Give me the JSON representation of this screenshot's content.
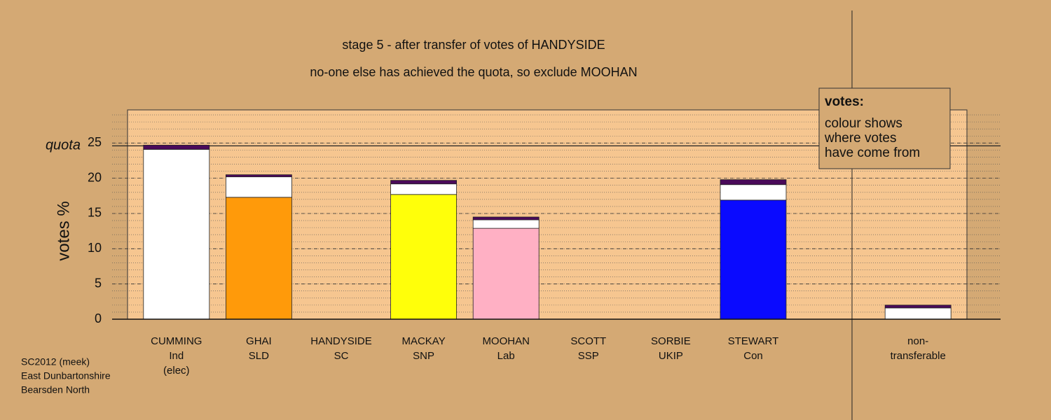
{
  "chart_data": {
    "type": "stacked-bar",
    "title": "stage 5 - after transfer of votes of HANDYSIDE",
    "subtitle": "no-one else has achieved the quota, so exclude MOOHAN",
    "y_label": "votes %",
    "categories": [
      [
        "CUMMING",
        "Ind",
        "(elec)"
      ],
      [
        "GHAI",
        "SLD"
      ],
      [
        "HANDYSIDE",
        "SC"
      ],
      [
        "MACKAY",
        "SNP"
      ],
      [
        "MOOHAN",
        "Lab"
      ],
      [
        "SCOTT",
        "SSP"
      ],
      [
        "SORBIE",
        "UKIP"
      ],
      [
        "STEWART",
        "Con"
      ],
      null,
      [
        "non-",
        "transferable"
      ]
    ],
    "series": [
      {
        "colors": [
          "#ffffff",
          "#ff9a0a",
          "#d0d0d0",
          "#ffff0a",
          "#ffb0c4",
          "#c0c0c0",
          "#9a2b9a",
          "#0a0aff",
          null,
          "#ffffff"
        ],
        "values": [
          24.1,
          17.3,
          0,
          17.7,
          12.9,
          0,
          0,
          16.9,
          null,
          0
        ]
      },
      {
        "color": "#ffffff",
        "values": [
          0,
          2.9,
          0,
          1.5,
          1.2,
          0,
          0,
          2.2,
          null,
          1.6
        ]
      },
      {
        "color": "#4a0a5a",
        "values": [
          0.6,
          0.3,
          0,
          0.5,
          0.4,
          0,
          0,
          0.7,
          null,
          0.4
        ]
      }
    ],
    "ylim": [
      0,
      29.7
    ],
    "yticks": [
      0,
      5,
      10,
      15,
      20,
      25
    ],
    "minor_grid_step": 1,
    "grid": true,
    "quota": {
      "label": "quota",
      "value": 24.6
    },
    "legend_note": {
      "title": "votes:",
      "lines": [
        "colour shows",
        "where votes",
        "have come from"
      ]
    },
    "footer": [
      "SC2012 (meek)",
      "East Dunbartonshire",
      "Bearsden North"
    ]
  }
}
